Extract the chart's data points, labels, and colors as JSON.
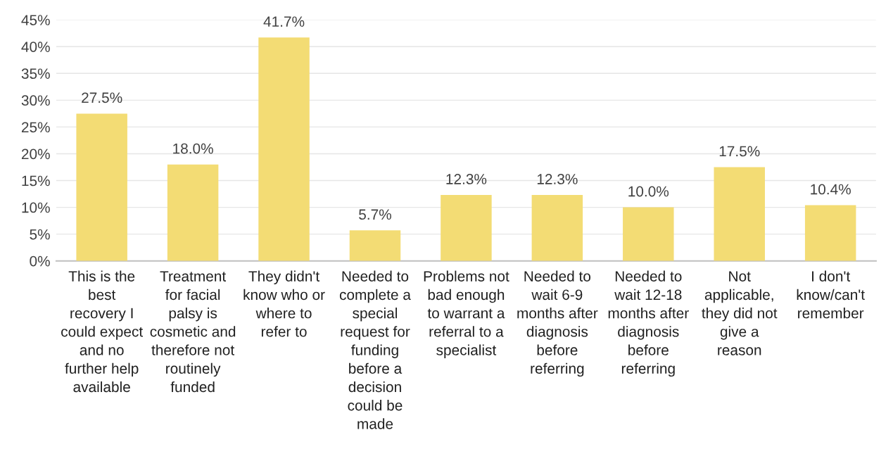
{
  "chart_data": {
    "type": "bar",
    "categories": [
      "This is the best recovery I could expect and no further help available",
      "Treatment for facial palsy is cosmetic and therefore not routinely funded",
      "They didn't know who or where to refer to",
      "Needed to complete a special request for funding before a decision could be made",
      "Problems not bad enough to warrant a referral to a specialist",
      "Needed to wait 6-9 months after diagnosis before referring",
      "Needed to wait 12-18 months after diagnosis before referring",
      "Not applicable, they did not give a reason",
      "I don't know/can't remember"
    ],
    "values": [
      27.5,
      18.0,
      41.7,
      5.7,
      12.3,
      12.3,
      10.0,
      17.5,
      10.4
    ],
    "value_labels": [
      "27.5%",
      "18.0%",
      "41.7%",
      "5.7%",
      "12.3%",
      "12.3%",
      "10.0%",
      "17.5%",
      "10.4%"
    ],
    "color": "#f3dc74",
    "ylim": [
      0,
      45
    ],
    "yticks": [
      {
        "value": 0,
        "label": "0%"
      },
      {
        "value": 5,
        "label": "5%"
      },
      {
        "value": 10,
        "label": "10%"
      },
      {
        "value": 15,
        "label": "15%"
      },
      {
        "value": 20,
        "label": "20%"
      },
      {
        "value": 25,
        "label": "25%"
      },
      {
        "value": 30,
        "label": "30%"
      },
      {
        "value": 35,
        "label": "35%"
      },
      {
        "value": 40,
        "label": "40%"
      },
      {
        "value": 45,
        "label": "45%"
      }
    ],
    "grid": "y",
    "legend": false
  }
}
